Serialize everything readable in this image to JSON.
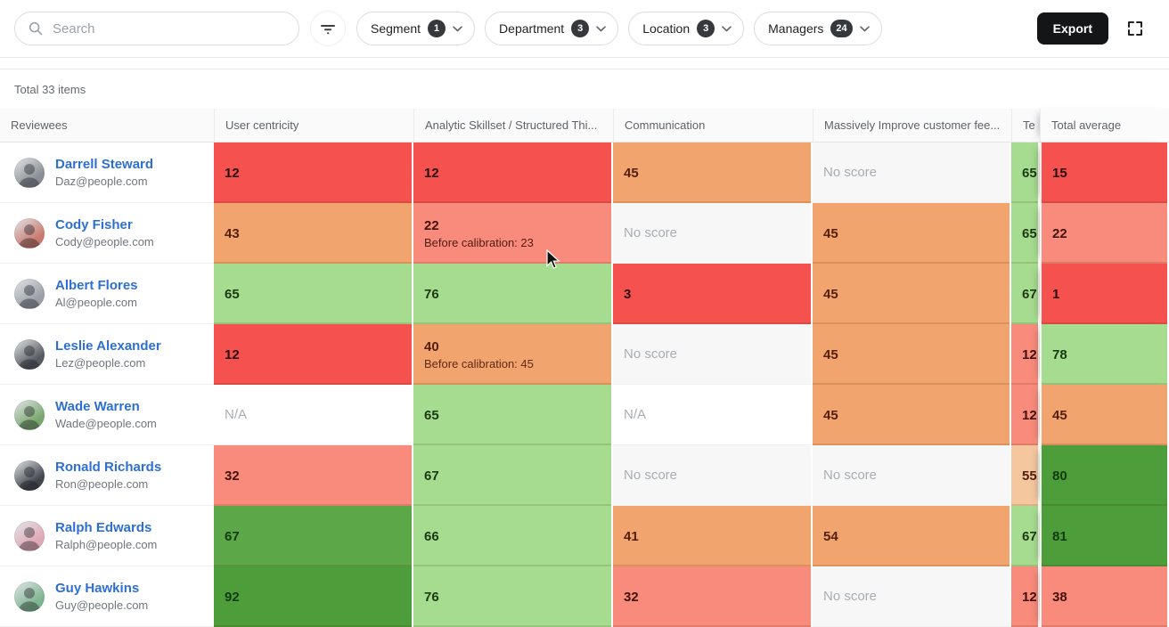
{
  "topbar": {
    "search": {
      "placeholder": "Search"
    },
    "filter_chips": [
      {
        "label": "Segment",
        "count": "1"
      },
      {
        "label": "Department",
        "count": "3"
      },
      {
        "label": "Location",
        "count": "3"
      },
      {
        "label": "Managers",
        "count": "24"
      }
    ],
    "export_label": "Export"
  },
  "summary": {
    "total_text": "Total 33 items"
  },
  "palette": {
    "red": {
      "bg": "#f4514f",
      "text": "#2a100d"
    },
    "salmon": {
      "bg": "#f98b7c",
      "text": "#43120b"
    },
    "orange": {
      "bg": "#f2a46e",
      "text": "#54200c"
    },
    "peach": {
      "bg": "#f4c79f",
      "text": "#54200c"
    },
    "lightgreen": {
      "bg": "#a6dc90",
      "text": "#1b3a12"
    },
    "green": {
      "bg": "#5ca748",
      "text": "#123c0e"
    },
    "darkgreen": {
      "bg": "#4d9e3a",
      "text": "#123c0e"
    },
    "gray": {
      "bg": "#f7f7f8",
      "text": "#a8adb3"
    },
    "none": {
      "bg": "#ffffff",
      "text": "#a8adb3"
    }
  },
  "table": {
    "columns": [
      {
        "label": "Reviewees"
      },
      {
        "label": "User centricity"
      },
      {
        "label": "Analytic Skillset / Structured Thi..."
      },
      {
        "label": "Communication"
      },
      {
        "label": "Massively Improve customer fee..."
      },
      {
        "label": "Te"
      },
      {
        "label": "Total average"
      }
    ],
    "rows": [
      {
        "name": "Darrell Steward",
        "email": "Daz@people.com",
        "avatar_color": "#8a8f95",
        "cells": [
          {
            "text": "12",
            "color": "red"
          },
          {
            "text": "12",
            "color": "red"
          },
          {
            "text": "45",
            "color": "orange"
          },
          {
            "text": "No score",
            "color": "gray"
          },
          {
            "text": "65",
            "color": "lightgreen"
          },
          {
            "text": "15",
            "color": "red"
          }
        ]
      },
      {
        "name": "Cody Fisher",
        "email": "Cody@people.com",
        "avatar_color": "#c97a6f",
        "cells": [
          {
            "text": "43",
            "color": "orange"
          },
          {
            "text": "22",
            "sub": "Before calibration: 23",
            "color": "salmon"
          },
          {
            "text": "No score",
            "color": "gray"
          },
          {
            "text": "45",
            "color": "orange"
          },
          {
            "text": "65",
            "color": "lightgreen"
          },
          {
            "text": "22",
            "color": "salmon"
          }
        ]
      },
      {
        "name": "Albert Flores",
        "email": "Al@people.com",
        "avatar_color": "#9aa0a6",
        "cells": [
          {
            "text": "65",
            "color": "lightgreen"
          },
          {
            "text": "76",
            "color": "lightgreen"
          },
          {
            "text": "3",
            "color": "red"
          },
          {
            "text": "45",
            "color": "orange"
          },
          {
            "text": "67",
            "color": "lightgreen"
          },
          {
            "text": "1",
            "color": "red"
          }
        ]
      },
      {
        "name": "Leslie Alexander",
        "email": "Lez@people.com",
        "avatar_color": "#555a61",
        "cells": [
          {
            "text": "12",
            "color": "red"
          },
          {
            "text": "40",
            "sub": "Before calibration: 45",
            "color": "orange"
          },
          {
            "text": "No score",
            "color": "gray"
          },
          {
            "text": "45",
            "color": "orange"
          },
          {
            "text": "12",
            "color": "salmon"
          },
          {
            "text": "78",
            "color": "lightgreen"
          }
        ]
      },
      {
        "name": "Wade Warren",
        "email": "Wade@people.com",
        "avatar_color": "#79a86e",
        "cells": [
          {
            "text": "N/A",
            "color": "none"
          },
          {
            "text": "65",
            "color": "lightgreen"
          },
          {
            "text": "N/A",
            "color": "none"
          },
          {
            "text": "45",
            "color": "orange"
          },
          {
            "text": "12",
            "color": "salmon"
          },
          {
            "text": "45",
            "color": "orange"
          }
        ]
      },
      {
        "name": "Ronald Richards",
        "email": "Ron@people.com",
        "avatar_color": "#41464d",
        "cells": [
          {
            "text": "32",
            "color": "salmon"
          },
          {
            "text": "67",
            "color": "lightgreen"
          },
          {
            "text": "No score",
            "color": "gray"
          },
          {
            "text": "No score",
            "color": "gray"
          },
          {
            "text": "55",
            "color": "peach"
          },
          {
            "text": "80",
            "color": "darkgreen"
          }
        ]
      },
      {
        "name": "Ralph Edwards",
        "email": "Ralph@people.com",
        "avatar_color": "#dfa9b6",
        "cells": [
          {
            "text": "67",
            "color": "green"
          },
          {
            "text": "66",
            "color": "lightgreen"
          },
          {
            "text": "41",
            "color": "orange"
          },
          {
            "text": "54",
            "color": "orange"
          },
          {
            "text": "67",
            "color": "lightgreen"
          },
          {
            "text": "81",
            "color": "darkgreen"
          }
        ]
      },
      {
        "name": "Guy Hawkins",
        "email": "Guy@people.com",
        "avatar_color": "#7fb591",
        "cells": [
          {
            "text": "92",
            "color": "darkgreen"
          },
          {
            "text": "76",
            "color": "lightgreen"
          },
          {
            "text": "32",
            "color": "salmon"
          },
          {
            "text": "No score",
            "color": "gray"
          },
          {
            "text": "12",
            "color": "salmon"
          },
          {
            "text": "38",
            "color": "salmon"
          }
        ]
      }
    ]
  }
}
